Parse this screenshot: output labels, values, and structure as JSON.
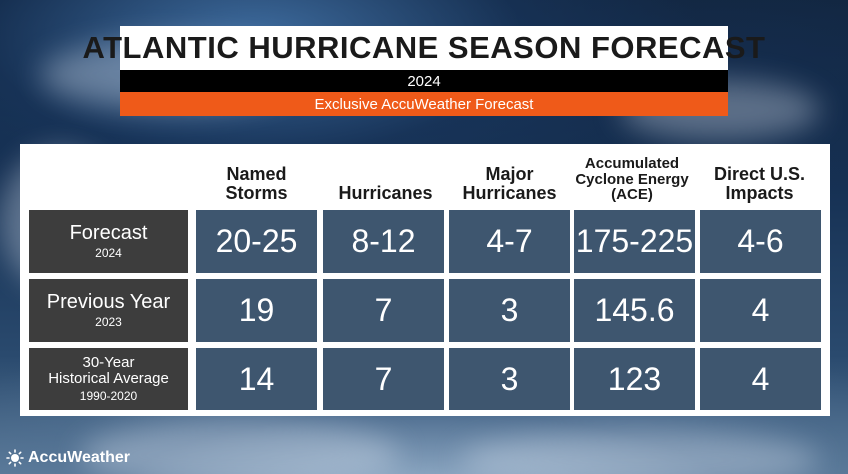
{
  "header": {
    "title": "ATLANTIC HURRICANE SEASON FORECAST",
    "year": "2024",
    "subtitle": "Exclusive AccuWeather Forecast"
  },
  "table": {
    "columns": [
      "Named\nStorms",
      "Hurricanes",
      "Major\nHurricanes",
      "Accumulated\nCyclone Energy\n(ACE)",
      "Direct U.S.\nImpacts"
    ],
    "rows": [
      {
        "label": "Forecast",
        "sublabel": "2024",
        "values": [
          "20-25",
          "8-12",
          "4-7",
          "175-225",
          "4-6"
        ]
      },
      {
        "label": "Previous Year",
        "sublabel": "2023",
        "values": [
          "19",
          "7",
          "3",
          "145.6",
          "4"
        ]
      },
      {
        "label": "30-Year\nHistorical Average",
        "sublabel": "1990-2020",
        "values": [
          "14",
          "7",
          "3",
          "123",
          "4"
        ]
      }
    ]
  },
  "brand": {
    "name": "AccuWeather",
    "icon": "sun-logo-icon"
  },
  "colors": {
    "accent": "#ef5a19",
    "cell": "#3e566f",
    "label": "#3d3d3d"
  }
}
